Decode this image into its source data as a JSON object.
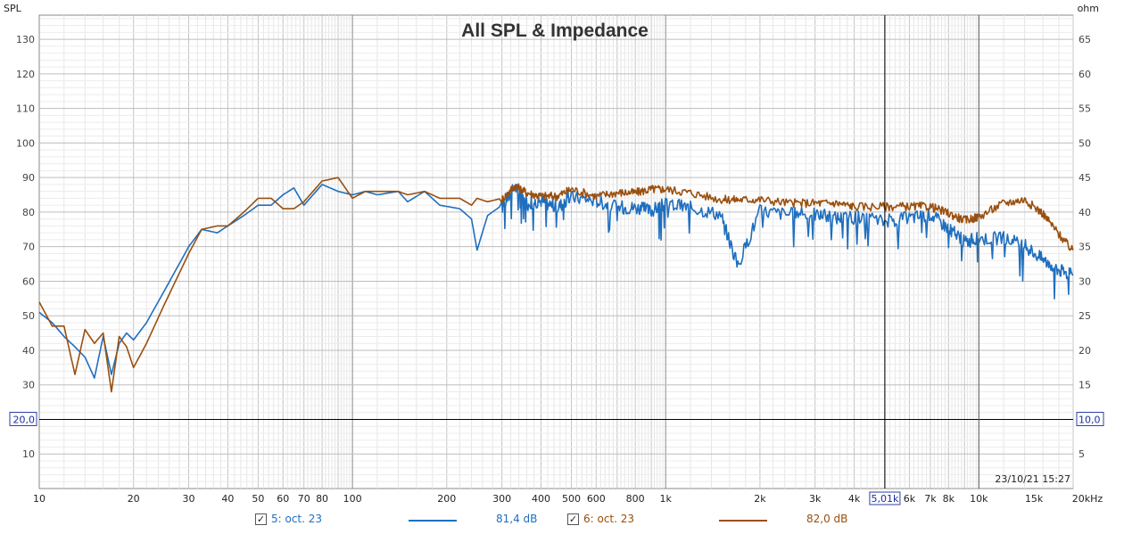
{
  "chart_data": {
    "type": "line",
    "title": "All SPL & Impedance",
    "ylabel": "SPL",
    "y2label": "ohm",
    "x_scale": "log",
    "xlim": [
      10,
      20000
    ],
    "ylim": [
      0,
      137
    ],
    "y2lim": [
      0,
      68.5
    ],
    "grid": true,
    "x_ticks": [
      "10",
      "20",
      "30",
      "40",
      "50",
      "60",
      "70",
      "80",
      "100",
      "200",
      "300",
      "400",
      "500",
      "600",
      "800",
      "1k",
      "2k",
      "3k",
      "4k",
      "5,01k",
      "6k",
      "7k",
      "8k",
      "10k",
      "15k",
      "20kHz"
    ],
    "x_tick_values": [
      10,
      20,
      30,
      40,
      50,
      60,
      70,
      80,
      100,
      200,
      300,
      400,
      500,
      600,
      800,
      1000,
      2000,
      3000,
      4000,
      5010,
      6000,
      7000,
      8000,
      10000,
      15000,
      20000
    ],
    "y_ticks": [
      "10",
      "20,0",
      "30",
      "40",
      "50",
      "60",
      "70",
      "80",
      "90",
      "100",
      "110",
      "120",
      "130"
    ],
    "y_tick_values": [
      10,
      20,
      30,
      40,
      50,
      60,
      70,
      80,
      90,
      100,
      110,
      120,
      130
    ],
    "y2_ticks": [
      "5",
      "10,0",
      "15",
      "20",
      "25",
      "30",
      "35",
      "40",
      "45",
      "50",
      "55",
      "60",
      "65"
    ],
    "y2_tick_values": [
      5,
      10,
      15,
      20,
      25,
      30,
      35,
      40,
      45,
      50,
      55,
      60,
      65
    ],
    "cursor": {
      "x_label": "5,01k",
      "x_value": 5010,
      "y_label": "20,0",
      "y_value": 20,
      "y2_label": "10,0"
    },
    "timestamp": "23/10/21 15:27",
    "series": [
      {
        "name": "5: oct. 23",
        "color": "#1f6fbf",
        "value_label": "81,4 dB",
        "points": [
          [
            10,
            51
          ],
          [
            11,
            48
          ],
          [
            12,
            44
          ],
          [
            13,
            41
          ],
          [
            14,
            38
          ],
          [
            15,
            32
          ],
          [
            16,
            44
          ],
          [
            17,
            33
          ],
          [
            18,
            42
          ],
          [
            19,
            45
          ],
          [
            20,
            43
          ],
          [
            22,
            48
          ],
          [
            25,
            57
          ],
          [
            30,
            70
          ],
          [
            33,
            75
          ],
          [
            37,
            74
          ],
          [
            40,
            76
          ],
          [
            45,
            79
          ],
          [
            50,
            82
          ],
          [
            55,
            82
          ],
          [
            60,
            85
          ],
          [
            65,
            87
          ],
          [
            70,
            82
          ],
          [
            80,
            88
          ],
          [
            90,
            86
          ],
          [
            100,
            85
          ],
          [
            110,
            86
          ],
          [
            120,
            85
          ],
          [
            140,
            86
          ],
          [
            150,
            83
          ],
          [
            170,
            86
          ],
          [
            190,
            82
          ],
          [
            220,
            81
          ],
          [
            240,
            78
          ],
          [
            250,
            69
          ],
          [
            270,
            79
          ],
          [
            300,
            82
          ],
          [
            330,
            88
          ],
          [
            360,
            83
          ],
          [
            400,
            84
          ],
          [
            450,
            82
          ],
          [
            500,
            85
          ],
          [
            600,
            84
          ],
          [
            700,
            82
          ],
          [
            800,
            82
          ],
          [
            900,
            81
          ],
          [
            1000,
            83
          ],
          [
            1200,
            82
          ],
          [
            1500,
            80
          ],
          [
            1700,
            65
          ],
          [
            2000,
            81
          ],
          [
            2500,
            80
          ],
          [
            3000,
            80
          ],
          [
            3500,
            79
          ],
          [
            4000,
            79
          ],
          [
            5000,
            78
          ],
          [
            6000,
            79
          ],
          [
            7000,
            80
          ],
          [
            8000,
            76
          ],
          [
            9000,
            72
          ],
          [
            10000,
            73
          ],
          [
            12000,
            73
          ],
          [
            14000,
            71
          ],
          [
            16000,
            67
          ],
          [
            18000,
            64
          ],
          [
            20000,
            62
          ]
        ]
      },
      {
        "name": "6: oct. 23",
        "color": "#9a4f0d",
        "value_label": "82,0 dB",
        "points": [
          [
            10,
            54
          ],
          [
            11,
            47
          ],
          [
            12,
            47
          ],
          [
            13,
            33
          ],
          [
            14,
            46
          ],
          [
            15,
            42
          ],
          [
            16,
            45
          ],
          [
            17,
            28
          ],
          [
            18,
            44
          ],
          [
            19,
            41
          ],
          [
            20,
            35
          ],
          [
            22,
            42
          ],
          [
            25,
            53
          ],
          [
            30,
            68
          ],
          [
            33,
            75
          ],
          [
            37,
            76
          ],
          [
            40,
            76
          ],
          [
            45,
            80
          ],
          [
            50,
            84
          ],
          [
            55,
            84
          ],
          [
            60,
            81
          ],
          [
            65,
            81
          ],
          [
            70,
            83
          ],
          [
            80,
            89
          ],
          [
            90,
            90
          ],
          [
            100,
            84
          ],
          [
            110,
            86
          ],
          [
            120,
            86
          ],
          [
            140,
            86
          ],
          [
            150,
            85
          ],
          [
            170,
            86
          ],
          [
            190,
            84
          ],
          [
            220,
            84
          ],
          [
            240,
            82
          ],
          [
            250,
            84
          ],
          [
            270,
            83
          ],
          [
            300,
            84
          ],
          [
            330,
            88
          ],
          [
            360,
            86
          ],
          [
            400,
            85
          ],
          [
            450,
            85
          ],
          [
            500,
            87
          ],
          [
            600,
            85
          ],
          [
            700,
            86
          ],
          [
            800,
            86
          ],
          [
            900,
            87
          ],
          [
            1000,
            87
          ],
          [
            1200,
            86
          ],
          [
            1500,
            84
          ],
          [
            1700,
            84
          ],
          [
            2000,
            84
          ],
          [
            2500,
            83
          ],
          [
            3000,
            83
          ],
          [
            3500,
            83
          ],
          [
            4000,
            82
          ],
          [
            5000,
            82
          ],
          [
            6000,
            82
          ],
          [
            7000,
            82
          ],
          [
            8000,
            80
          ],
          [
            9000,
            78
          ],
          [
            10000,
            79
          ],
          [
            12000,
            83
          ],
          [
            14000,
            84
          ],
          [
            16000,
            80
          ],
          [
            18000,
            74
          ],
          [
            20000,
            69
          ]
        ]
      }
    ]
  },
  "legend": {
    "items": [
      {
        "label": "5: oct. 23",
        "color": "#1f6fbf",
        "value": "81,4 dB",
        "checked": "✓"
      },
      {
        "label": "6: oct. 23",
        "color": "#9a4f0d",
        "value": "82,0 dB",
        "checked": "✓"
      }
    ]
  }
}
